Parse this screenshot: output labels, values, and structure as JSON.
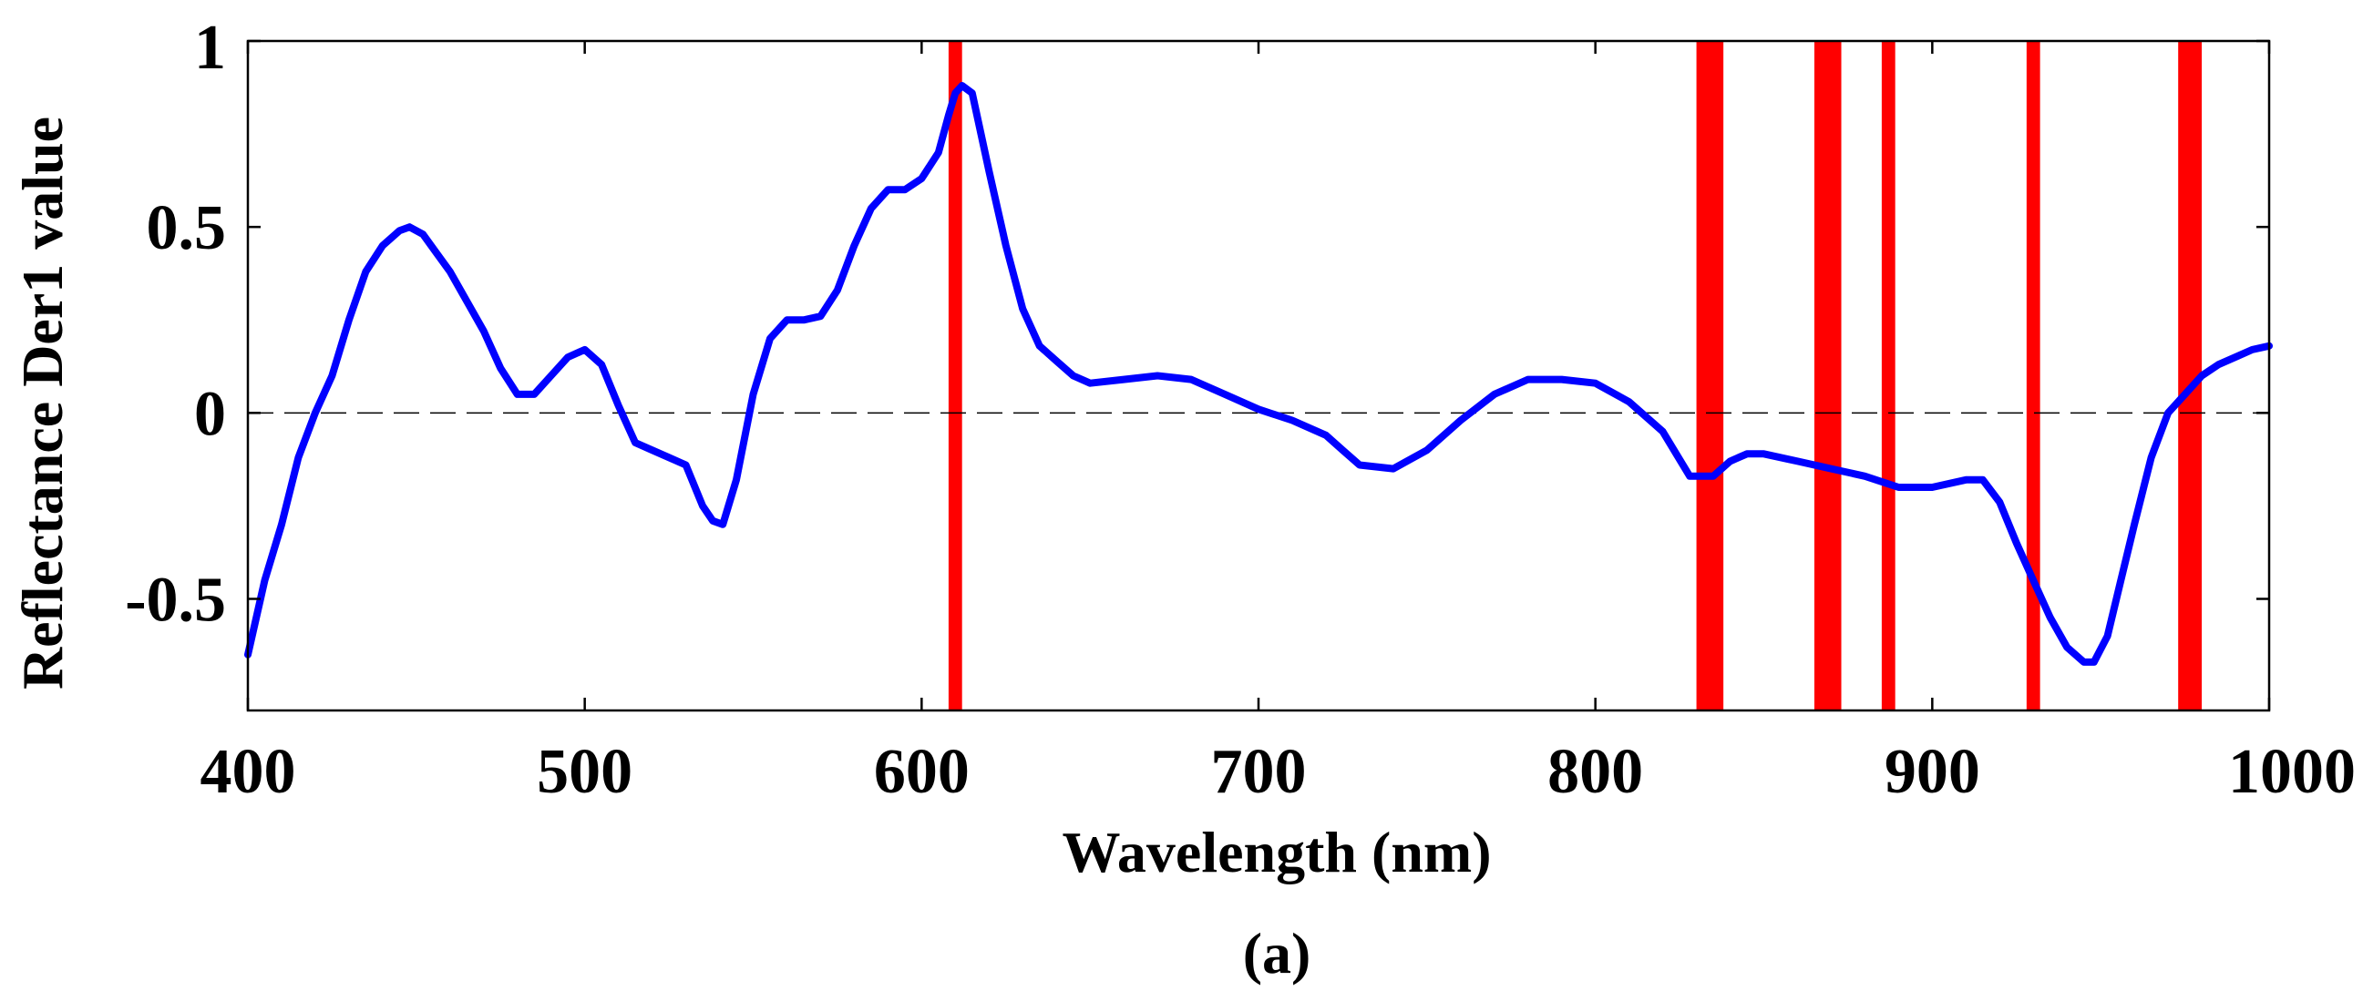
{
  "chart_data": {
    "type": "line",
    "xlabel": "Wavelength (nm)",
    "ylabel": "Reflectance Der1 value",
    "caption": "(a)",
    "xlim": [
      400,
      1000
    ],
    "ylim": [
      -0.8,
      1.0
    ],
    "xticks": [
      400,
      500,
      600,
      700,
      800,
      900,
      1000
    ],
    "xtick_labels": [
      "400",
      "500",
      "600",
      "700",
      "800",
      "900",
      "1000"
    ],
    "yticks": [
      -0.5,
      0,
      0.5,
      1
    ],
    "ytick_labels": [
      "-0.5",
      "0",
      "0.5",
      "1"
    ],
    "grid": false,
    "zero_line": "dashed",
    "colors": {
      "series": "#0000ff",
      "bands": "#ff0000",
      "axis": "#000000"
    },
    "series": [
      {
        "name": "Der1",
        "color": "#0000ff",
        "x": [
          400,
          405,
          410,
          415,
          420,
          425,
          430,
          435,
          440,
          445,
          448,
          452,
          456,
          460,
          465,
          470,
          475,
          480,
          485,
          490,
          495,
          500,
          505,
          510,
          515,
          520,
          525,
          530,
          535,
          538,
          541,
          545,
          550,
          555,
          560,
          565,
          570,
          575,
          580,
          585,
          590,
          595,
          600,
          605,
          608,
          610,
          612,
          615,
          620,
          625,
          630,
          635,
          640,
          645,
          650,
          660,
          670,
          680,
          690,
          700,
          710,
          720,
          725,
          730,
          740,
          750,
          760,
          770,
          780,
          790,
          800,
          810,
          820,
          828,
          835,
          840,
          845,
          850,
          860,
          870,
          880,
          890,
          900,
          910,
          915,
          920,
          925,
          930,
          935,
          940,
          945,
          948,
          952,
          956,
          960,
          965,
          970,
          975,
          980,
          985,
          990,
          995,
          1000
        ],
        "y": [
          -0.65,
          -0.45,
          -0.3,
          -0.12,
          0.0,
          0.1,
          0.25,
          0.38,
          0.45,
          0.49,
          0.5,
          0.48,
          0.43,
          0.38,
          0.3,
          0.22,
          0.12,
          0.05,
          0.05,
          0.1,
          0.15,
          0.17,
          0.13,
          0.02,
          -0.08,
          -0.1,
          -0.12,
          -0.14,
          -0.25,
          -0.29,
          -0.3,
          -0.18,
          0.05,
          0.2,
          0.25,
          0.25,
          0.26,
          0.33,
          0.45,
          0.55,
          0.6,
          0.6,
          0.63,
          0.7,
          0.8,
          0.86,
          0.88,
          0.86,
          0.65,
          0.45,
          0.28,
          0.18,
          0.14,
          0.1,
          0.08,
          0.09,
          0.1,
          0.09,
          0.05,
          0.01,
          -0.02,
          -0.06,
          -0.1,
          -0.14,
          -0.15,
          -0.1,
          -0.02,
          0.05,
          0.09,
          0.09,
          0.08,
          0.03,
          -0.05,
          -0.17,
          -0.17,
          -0.13,
          -0.11,
          -0.11,
          -0.13,
          -0.15,
          -0.17,
          -0.2,
          -0.2,
          -0.18,
          -0.18,
          -0.24,
          -0.35,
          -0.45,
          -0.55,
          -0.63,
          -0.67,
          -0.67,
          -0.6,
          -0.45,
          -0.3,
          -0.12,
          0.0,
          0.05,
          0.1,
          0.13,
          0.15,
          0.17,
          0.18
        ]
      }
    ],
    "bands": [
      {
        "from": 608,
        "to": 612
      },
      {
        "from": 830,
        "to": 838
      },
      {
        "from": 865,
        "to": 873
      },
      {
        "from": 885,
        "to": 889
      },
      {
        "from": 928,
        "to": 932
      },
      {
        "from": 973,
        "to": 980
      }
    ]
  }
}
